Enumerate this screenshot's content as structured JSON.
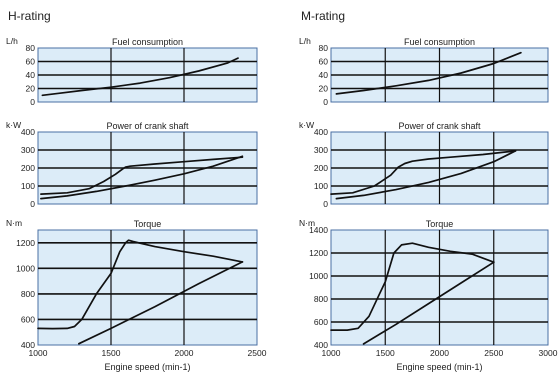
{
  "colors": {
    "plot_bg": "#dcecf8",
    "plot_border": "#4a6fa3",
    "grid": "#111111",
    "curve": "#111111",
    "text": "#222222"
  },
  "chart_data": [
    {
      "id": "h-rating",
      "rating_label": "H-rating",
      "xlabel": "Engine speed (min-1)",
      "xlim": [
        1000,
        2500
      ],
      "xticks": [
        1000,
        1500,
        2000,
        2500
      ],
      "panels": [
        {
          "type": "line",
          "title": "Fuel consumption",
          "ylabel": "L/h",
          "ylim": [
            0,
            80
          ],
          "yticks": [
            0,
            20,
            40,
            60,
            80
          ],
          "series": [
            {
              "x": [
                1030,
                1150,
                1300,
                1500,
                1700,
                1900,
                2100,
                2300,
                2370
              ],
              "y": [
                10,
                13,
                17,
                22,
                28,
                36,
                46,
                58,
                65
              ]
            }
          ]
        },
        {
          "type": "line",
          "title": "Power of crank shaft",
          "ylabel": "k·W",
          "ylim": [
            0,
            400
          ],
          "yticks": [
            0,
            100,
            200,
            300,
            400
          ],
          "series": [
            {
              "x": [
                1020,
                1200,
                1350,
                1450,
                1530,
                1580,
                1600,
                1630,
                1800,
                2000,
                2200,
                2400
              ],
              "y": [
                55,
                62,
                85,
                125,
                165,
                195,
                205,
                210,
                222,
                235,
                248,
                260
              ]
            },
            {
              "x": [
                1020,
                1200,
                1400,
                1600,
                1800,
                2000,
                2200,
                2400
              ],
              "y": [
                30,
                45,
                70,
                100,
                132,
                168,
                210,
                265
              ]
            }
          ]
        },
        {
          "type": "line",
          "title": "Torque",
          "ylabel": "N·m",
          "ylim": [
            400,
            1300
          ],
          "yticks": [
            400,
            600,
            800,
            1000,
            1200
          ],
          "series": [
            {
              "x": [
                1000,
                1100,
                1200,
                1250,
                1300,
                1400,
                1500,
                1560,
                1600,
                1620,
                1650,
                1800,
                2000,
                2200,
                2400
              ],
              "y": [
                530,
                528,
                530,
                545,
                600,
                800,
                960,
                1130,
                1200,
                1220,
                1210,
                1170,
                1130,
                1095,
                1050
              ]
            },
            {
              "x": [
                1280,
                1500,
                1800,
                2100,
                2400
              ],
              "y": [
                410,
                530,
                700,
                880,
                1050
              ]
            }
          ]
        }
      ]
    },
    {
      "id": "m-rating",
      "rating_label": "M-rating",
      "xlabel": "Engine speed (min-1)",
      "xlim": [
        1000,
        3000
      ],
      "xticks": [
        1000,
        1500,
        2000,
        2500,
        3000
      ],
      "panels": [
        {
          "type": "line",
          "title": "Fuel consumption",
          "ylabel": "L/h",
          "ylim": [
            0,
            80
          ],
          "yticks": [
            0,
            20,
            40,
            60,
            80
          ],
          "series": [
            {
              "x": [
                1050,
                1300,
                1600,
                1900,
                2200,
                2500,
                2750
              ],
              "y": [
                12,
                17,
                24,
                32,
                43,
                57,
                73
              ]
            }
          ]
        },
        {
          "type": "line",
          "title": "Power of crank shaft",
          "ylabel": "k·W",
          "ylim": [
            0,
            400
          ],
          "yticks": [
            0,
            100,
            200,
            300,
            400
          ],
          "series": [
            {
              "x": [
                1000,
                1200,
                1400,
                1550,
                1620,
                1680,
                1750,
                1900,
                2100,
                2400,
                2700
              ],
              "y": [
                55,
                62,
                100,
                160,
                205,
                225,
                238,
                250,
                260,
                275,
                295
              ]
            },
            {
              "x": [
                1050,
                1300,
                1600,
                1900,
                2200,
                2500,
                2700
              ],
              "y": [
                30,
                48,
                80,
                120,
                170,
                235,
                295
              ]
            }
          ]
        },
        {
          "type": "line",
          "title": "Torque",
          "ylabel": "N·m",
          "ylim": [
            400,
            1400
          ],
          "yticks": [
            400,
            600,
            800,
            1000,
            1200,
            1400
          ],
          "series": [
            {
              "x": [
                1000,
                1150,
                1250,
                1350,
                1450,
                1500,
                1580,
                1650,
                1750,
                1900,
                2100,
                2300,
                2500
              ],
              "y": [
                530,
                530,
                545,
                650,
                850,
                950,
                1200,
                1270,
                1285,
                1250,
                1215,
                1190,
                1120
              ]
            },
            {
              "x": [
                1300,
                1600,
                1900,
                2200,
                2500
              ],
              "y": [
                410,
                580,
                760,
                940,
                1120
              ]
            }
          ]
        }
      ]
    }
  ]
}
